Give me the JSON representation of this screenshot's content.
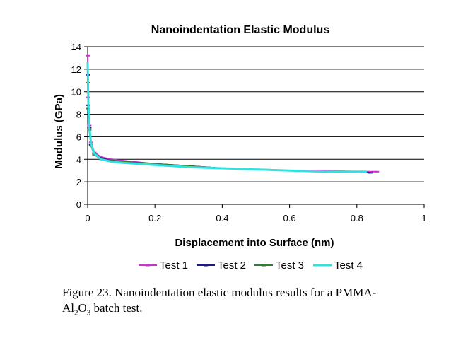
{
  "chart_data": {
    "type": "line",
    "title": "Nanoindentation Elastic Modulus",
    "xlabel": "Displacement into Surface (nm)",
    "ylabel": "Modulus (GPa)",
    "xlim": [
      0,
      1
    ],
    "ylim": [
      0,
      14
    ],
    "x_ticks": [
      "0",
      "0.2",
      "0.4",
      "0.6",
      "0.8",
      "1"
    ],
    "y_ticks": [
      "0",
      "2",
      "4",
      "6",
      "8",
      "10",
      "12",
      "14"
    ],
    "grid": "horizontal",
    "legend_position": "bottom",
    "series": [
      {
        "name": "Test 1",
        "color": "#cc33cc",
        "marker": "dash",
        "x": [
          0.0,
          0.002,
          0.005,
          0.01,
          0.02,
          0.04,
          0.07,
          0.1,
          0.2,
          0.3,
          0.4,
          0.5,
          0.6,
          0.7,
          0.8,
          0.86
        ],
        "y": [
          13.2,
          9.5,
          7.0,
          5.5,
          4.6,
          4.2,
          4.0,
          3.9,
          3.6,
          3.4,
          3.2,
          3.1,
          3.0,
          3.0,
          2.9,
          2.9
        ]
      },
      {
        "name": "Test 2",
        "color": "#1a1a80",
        "marker": "dash",
        "x": [
          0.0,
          0.002,
          0.005,
          0.01,
          0.02,
          0.04,
          0.07,
          0.1,
          0.2,
          0.3,
          0.4,
          0.5,
          0.6,
          0.7,
          0.8,
          0.84
        ],
        "y": [
          11.5,
          8.8,
          6.8,
          5.3,
          4.5,
          4.1,
          3.9,
          3.8,
          3.6,
          3.4,
          3.2,
          3.1,
          3.0,
          2.9,
          2.9,
          2.8
        ]
      },
      {
        "name": "Test 3",
        "color": "#2e7d32",
        "marker": "dash",
        "x": [
          0.0,
          0.002,
          0.005,
          0.01,
          0.02,
          0.04,
          0.07,
          0.1,
          0.2,
          0.3,
          0.4,
          0.5,
          0.6,
          0.7,
          0.8,
          0.82
        ],
        "y": [
          10.8,
          8.5,
          6.6,
          5.2,
          4.4,
          4.0,
          3.9,
          3.8,
          3.6,
          3.4,
          3.2,
          3.1,
          3.0,
          2.9,
          2.9,
          2.9
        ]
      },
      {
        "name": "Test 4",
        "color": "#33e0e0",
        "marker": "none",
        "x": [
          0.0,
          0.002,
          0.005,
          0.01,
          0.02,
          0.04,
          0.07,
          0.1,
          0.2,
          0.3,
          0.4,
          0.5,
          0.6,
          0.7,
          0.8,
          0.83
        ],
        "y": [
          12.6,
          9.0,
          6.9,
          5.4,
          4.5,
          4.0,
          3.8,
          3.7,
          3.5,
          3.3,
          3.2,
          3.1,
          3.0,
          2.9,
          2.9,
          2.9
        ]
      }
    ]
  },
  "caption": {
    "line1": "Figure 23. Nanoindentation elastic modulus results for a PMMA-",
    "line2_pre": "Al",
    "line2_sub1": "2",
    "line2_mid": "O",
    "line2_sub2": "3",
    "line2_post": " batch test."
  }
}
